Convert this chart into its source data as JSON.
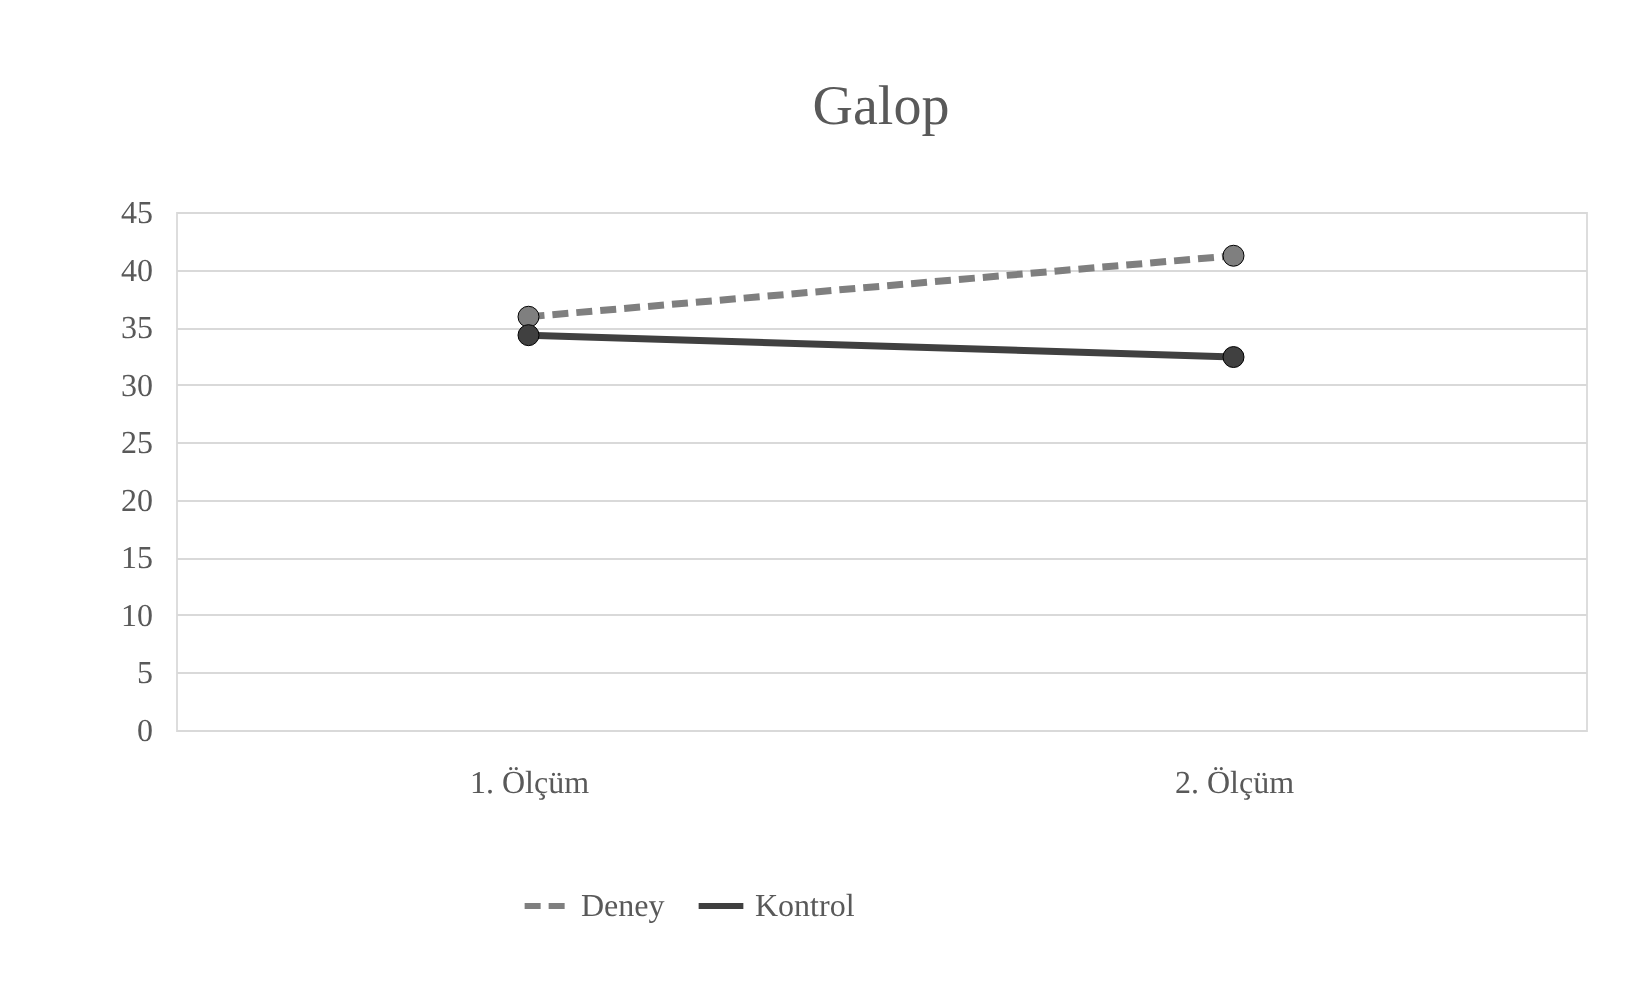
{
  "chart_data": {
    "type": "line",
    "title": "Galop",
    "categories": [
      "1. Ölçüm",
      "2. Ölçüm"
    ],
    "series": [
      {
        "name": "Deney",
        "color": "#7f7f7f",
        "line_style": "dashed",
        "values": [
          35.9,
          41.2
        ]
      },
      {
        "name": "Kontrol",
        "color": "#404040",
        "line_style": "solid",
        "values": [
          34.3,
          32.4
        ]
      }
    ],
    "ylim": [
      0,
      45
    ],
    "yticks": [
      0,
      5,
      10,
      15,
      20,
      25,
      30,
      35,
      40,
      45
    ],
    "grid": "y",
    "legend": "bottom",
    "marker": "circle"
  }
}
